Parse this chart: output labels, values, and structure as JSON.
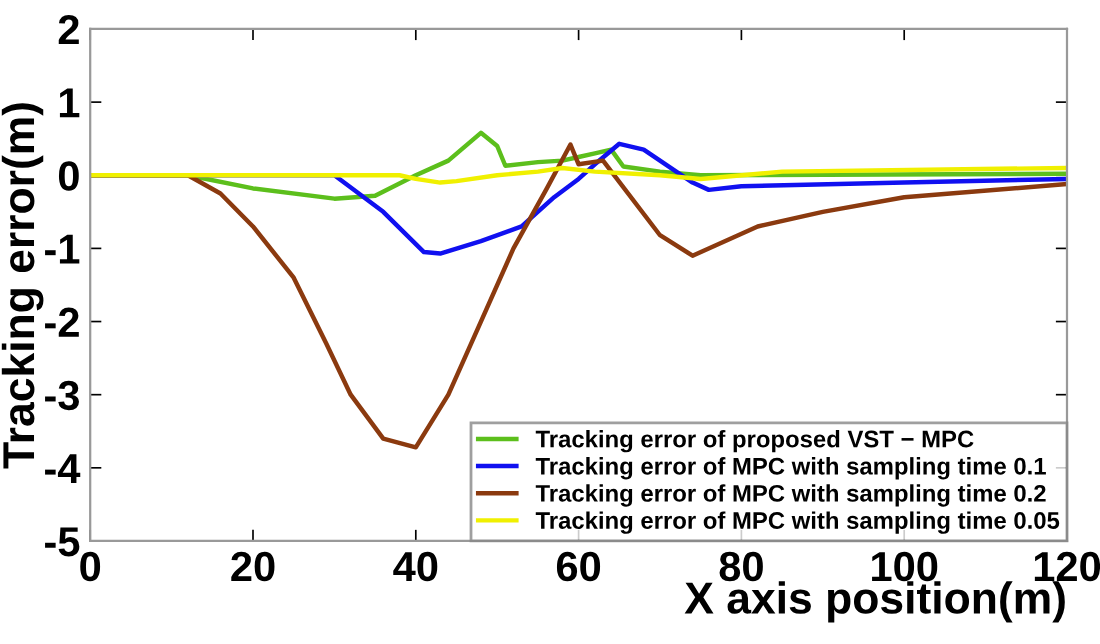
{
  "chart_data": {
    "type": "line",
    "xlabel": "X axis position(m)",
    "ylabel": "Tracking error(m)",
    "xlim": [
      0,
      120
    ],
    "ylim": [
      -5,
      2
    ],
    "xticks": [
      0,
      20,
      40,
      60,
      80,
      100,
      120
    ],
    "yticks": [
      -5,
      -4,
      -3,
      -2,
      -1,
      0,
      1,
      2
    ],
    "grid": false,
    "legend": "bottom right",
    "marker": "none",
    "line_style": "solid",
    "series": [
      {
        "name": "Tracking error of proposed VST − MPC",
        "color": "#5cbf1c",
        "x": [
          0,
          12,
          20,
          30,
          35,
          40,
          44,
          48,
          50,
          51,
          55,
          58,
          60,
          62,
          64,
          65.5,
          70,
          75,
          120
        ],
        "values": [
          0,
          0,
          -0.18,
          -0.32,
          -0.28,
          0,
          0.2,
          0.58,
          0.4,
          0.13,
          0.18,
          0.2,
          0.25,
          0.3,
          0.35,
          0.12,
          0.05,
          0,
          0.02
        ]
      },
      {
        "name": "Tracking error of MPC with sampling time 0.1",
        "color": "#1010f0",
        "x": [
          0,
          30,
          36,
          41,
          43,
          48,
          53,
          57,
          60,
          62,
          65,
          68,
          74,
          76,
          80,
          100,
          120
        ],
        "values": [
          0,
          0,
          -0.5,
          -1.05,
          -1.07,
          -0.9,
          -0.7,
          -0.3,
          -0.05,
          0.15,
          0.43,
          0.35,
          -0.1,
          -0.2,
          -0.15,
          -0.1,
          -0.05
        ]
      },
      {
        "name": "Tracking error of MPC with sampling time 0.2",
        "color": "#8b3a0f",
        "x": [
          0,
          12,
          16,
          20,
          25,
          29,
          32,
          36,
          40,
          44,
          48,
          52,
          56,
          59,
          60,
          63,
          70,
          74,
          82,
          90,
          100,
          120
        ],
        "values": [
          0,
          0,
          -0.25,
          -0.7,
          -1.4,
          -2.3,
          -3.0,
          -3.6,
          -3.72,
          -3.0,
          -2.0,
          -1.0,
          -0.2,
          0.42,
          0.15,
          0.2,
          -0.82,
          -1.1,
          -0.7,
          -0.5,
          -0.3,
          -0.12
        ]
      },
      {
        "name": "Tracking error of MPC with sampling time 0.05",
        "color": "#f0f000",
        "x": [
          0,
          38,
          40,
          43,
          45,
          50,
          55,
          58,
          62,
          70,
          75,
          85,
          120
        ],
        "values": [
          0,
          0,
          -0.05,
          -0.1,
          -0.08,
          0,
          0.05,
          0.1,
          0.05,
          0,
          -0.05,
          0.05,
          0.1
        ]
      }
    ]
  }
}
